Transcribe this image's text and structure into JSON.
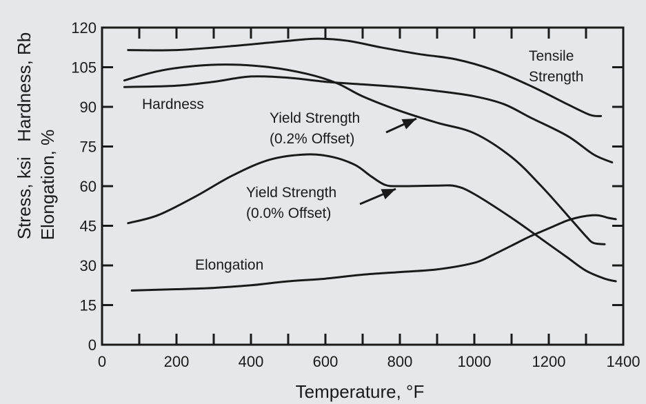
{
  "chart_data": {
    "type": "line",
    "xlabel": "Temperature, °F",
    "ylabel_lines": [
      "Elongation, %",
      "Stress, ksi   Hardness, Rb"
    ],
    "xlim": [
      0,
      1400
    ],
    "ylim": [
      0,
      120
    ],
    "x_ticks": [
      0,
      200,
      400,
      600,
      800,
      1000,
      1200,
      1400
    ],
    "y_ticks": [
      0,
      15,
      30,
      45,
      60,
      75,
      90,
      105,
      120
    ],
    "grid": false,
    "series": [
      {
        "name": "Tensile Strength",
        "label_lines": [
          "Tensile",
          "Strength"
        ],
        "points": [
          [
            70,
            111.5
          ],
          [
            200,
            111.5
          ],
          [
            350,
            113
          ],
          [
            500,
            115
          ],
          [
            580,
            115.8
          ],
          [
            660,
            115
          ],
          [
            750,
            112.5
          ],
          [
            850,
            110
          ],
          [
            950,
            108
          ],
          [
            1050,
            104
          ],
          [
            1150,
            98
          ],
          [
            1250,
            91
          ],
          [
            1310,
            87
          ],
          [
            1340,
            86.5
          ]
        ]
      },
      {
        "name": "Hardness",
        "label_lines": [
          "Hardness"
        ],
        "points": [
          [
            60,
            97.5
          ],
          [
            200,
            98
          ],
          [
            300,
            99.5
          ],
          [
            400,
            101.5
          ],
          [
            500,
            101
          ],
          [
            600,
            99.5
          ],
          [
            700,
            98.5
          ],
          [
            800,
            97.5
          ],
          [
            900,
            96
          ],
          [
            1000,
            94
          ],
          [
            1080,
            91
          ],
          [
            1150,
            86
          ],
          [
            1250,
            79
          ],
          [
            1320,
            72
          ],
          [
            1370,
            69
          ]
        ]
      },
      {
        "name": "Yield Strength (0.2% Offset)",
        "label_lines": [
          "Yield Strength",
          "(0.2% Offset)"
        ],
        "points": [
          [
            60,
            100
          ],
          [
            150,
            103.5
          ],
          [
            250,
            105.5
          ],
          [
            350,
            106
          ],
          [
            450,
            105
          ],
          [
            550,
            102.5
          ],
          [
            630,
            99
          ],
          [
            700,
            94
          ],
          [
            800,
            88.5
          ],
          [
            900,
            84
          ],
          [
            1000,
            80
          ],
          [
            1100,
            71
          ],
          [
            1180,
            60
          ],
          [
            1250,
            49
          ],
          [
            1300,
            41
          ],
          [
            1320,
            38.5
          ],
          [
            1350,
            38
          ]
        ]
      },
      {
        "name": "Yield Strength (0.0% Offset)",
        "label_lines": [
          "Yield Strength",
          "(0.0% Offset)"
        ],
        "points": [
          [
            70,
            46
          ],
          [
            150,
            49
          ],
          [
            250,
            56
          ],
          [
            350,
            64
          ],
          [
            450,
            70
          ],
          [
            550,
            72
          ],
          [
            620,
            71
          ],
          [
            680,
            68
          ],
          [
            720,
            64
          ],
          [
            760,
            60.5
          ],
          [
            800,
            60
          ],
          [
            900,
            60.2
          ],
          [
            950,
            60
          ],
          [
            1000,
            57
          ],
          [
            1100,
            48
          ],
          [
            1200,
            38
          ],
          [
            1250,
            33
          ],
          [
            1300,
            28
          ],
          [
            1350,
            25
          ],
          [
            1380,
            24
          ]
        ]
      },
      {
        "name": "Elongation",
        "label_lines": [
          "Elongation"
        ],
        "points": [
          [
            80,
            20.5
          ],
          [
            200,
            21
          ],
          [
            300,
            21.5
          ],
          [
            400,
            22.5
          ],
          [
            500,
            24
          ],
          [
            600,
            25
          ],
          [
            700,
            26.5
          ],
          [
            800,
            27.5
          ],
          [
            900,
            28.5
          ],
          [
            1000,
            31
          ],
          [
            1050,
            34
          ],
          [
            1100,
            37.5
          ],
          [
            1150,
            41
          ],
          [
            1200,
            44
          ],
          [
            1250,
            47
          ],
          [
            1290,
            48.5
          ],
          [
            1330,
            49
          ],
          [
            1360,
            48
          ],
          [
            1380,
            47.5
          ]
        ]
      }
    ]
  }
}
